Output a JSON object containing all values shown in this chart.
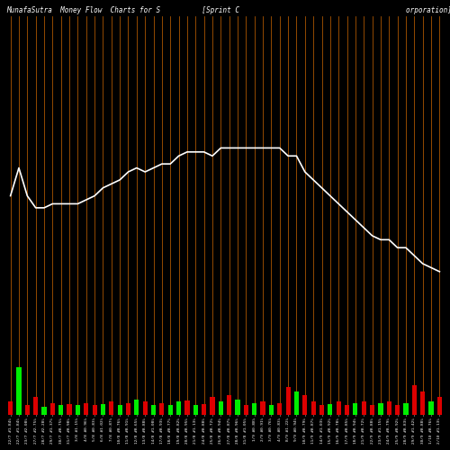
{
  "title": "MunafaSutra  Money Flow  Charts for S          [Sprint C                                        orporation]",
  "background_color": "#000000",
  "orange_line_color": "#CC6600",
  "white_line_color": "#FFFFFF",
  "green_color": "#00EE00",
  "red_color": "#DD0000",
  "dates": [
    "22/7 #1.84%",
    "22/7 #1.84%",
    "23/7 #2.08%",
    "27/7 #2.75%",
    "28/7 #2.28%",
    "29/7 #1.37%",
    "30/7 #0.75%",
    "31/7 #0.98%",
    "3/8 #1.15%",
    "4/8 #0.96%",
    "5/8 #0.83%",
    "6/8 #1.02%",
    "7/8 #0.87%",
    "10/8 #0.76%",
    "11/8 #0.91%",
    "12/8 #0.65%",
    "13/8 #0.88%",
    "14/8 #1.08%",
    "17/8 #0.93%",
    "18/8 #0.77%",
    "19/8 #0.82%",
    "20/8 #0.95%",
    "21/8 #1.13%",
    "24/8 #0.88%",
    "25/8 #0.72%",
    "26/8 #0.94%",
    "27/8 #0.87%",
    "28/8 #0.96%",
    "31/8 #1.05%",
    "1/9 #0.88%",
    "2/9 #0.91%",
    "3/9 #0.76%",
    "4/9 #0.83%",
    "8/9 #1.22%",
    "9/9 #0.94%",
    "10/9 #0.79%",
    "11/9 #0.87%",
    "14/9 #1.03%",
    "15/9 #0.92%",
    "16/9 #0.78%",
    "17/9 #0.85%",
    "18/9 #0.94%",
    "21/9 #0.72%",
    "22/9 #0.88%",
    "23/9 #1.15%",
    "24/9 #0.79%",
    "25/9 #0.92%",
    "28/9 #0.83%",
    "29/9 #1.42%",
    "30/9 #0.88%",
    "1/10 #0.76%",
    "2/10 #1.13%"
  ],
  "bar_heights": [
    3.5,
    12.0,
    2.5,
    4.5,
    2.2,
    3.0,
    2.5,
    2.8,
    2.5,
    3.0,
    2.5,
    2.8,
    3.5,
    2.5,
    3.0,
    4.0,
    3.5,
    2.5,
    3.0,
    2.5,
    3.5,
    3.8,
    2.5,
    2.8,
    4.5,
    3.5,
    5.0,
    4.0,
    2.5,
    3.0,
    3.5,
    2.5,
    3.0,
    7.0,
    6.0,
    5.0,
    3.5,
    2.5,
    2.8,
    3.5,
    2.5,
    3.0,
    3.5,
    2.5,
    3.0,
    3.5,
    2.5,
    3.0,
    7.5,
    6.0,
    3.5,
    4.5
  ],
  "bar_colors_key": [
    "r",
    "g",
    "r",
    "r",
    "g",
    "r",
    "g",
    "r",
    "g",
    "r",
    "r",
    "g",
    "r",
    "g",
    "r",
    "g",
    "r",
    "g",
    "r",
    "g",
    "g",
    "r",
    "g",
    "r",
    "r",
    "g",
    "r",
    "g",
    "r",
    "g",
    "r",
    "g",
    "r",
    "r",
    "g",
    "r",
    "r",
    "r",
    "g",
    "r",
    "r",
    "g",
    "r",
    "r",
    "g",
    "r",
    "r",
    "g",
    "r",
    "r",
    "g",
    "r"
  ],
  "line_values": [
    55,
    62,
    55,
    52,
    52,
    53,
    53,
    53,
    53,
    54,
    55,
    57,
    58,
    59,
    61,
    62,
    61,
    62,
    63,
    63,
    65,
    66,
    66,
    66,
    65,
    67,
    67,
    67,
    67,
    67,
    67,
    67,
    67,
    65,
    65,
    61,
    59,
    57,
    55,
    53,
    51,
    49,
    47,
    45,
    44,
    44,
    42,
    42,
    40,
    38,
    37,
    36
  ],
  "ylim": [
    0,
    100
  ],
  "title_fontsize": 5.5
}
